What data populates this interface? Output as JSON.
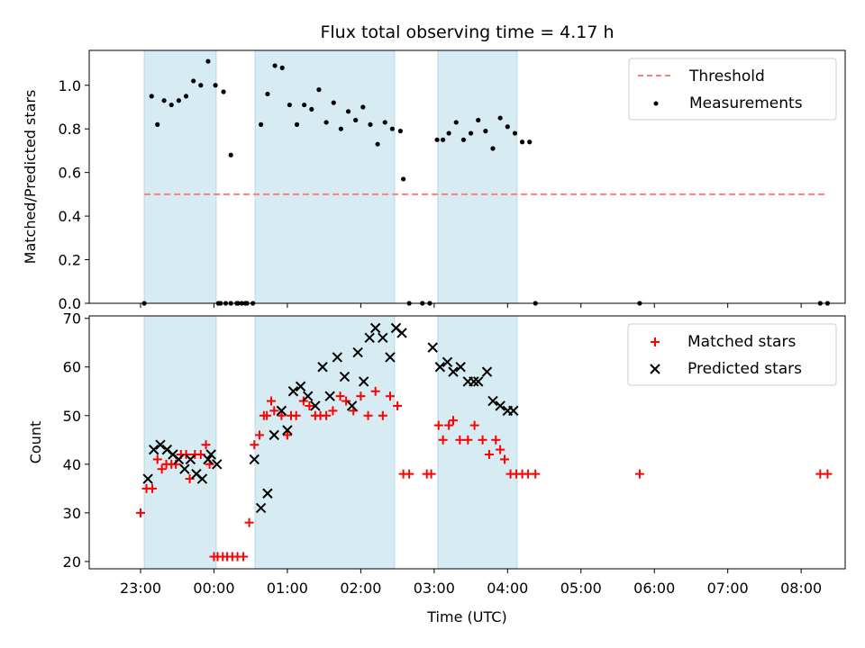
{
  "chart_data": [
    {
      "type": "scatter",
      "title": "Flux total observing time = 4.17 h",
      "xlabel": "",
      "ylabel": "Matched/Predicted stars",
      "ylim": [
        0,
        1.16
      ],
      "yticks": [
        0.0,
        0.2,
        0.4,
        0.6,
        0.8,
        1.0
      ],
      "ytick_labels": [
        "0.0",
        "0.2",
        "0.4",
        "0.6",
        "0.8",
        "1.0"
      ],
      "x_unit": "hours relative to 00:00 UTC",
      "xlim": [
        -1.7,
        8.6
      ],
      "shaded_intervals": [
        [
          -0.95,
          0.03
        ],
        [
          0.56,
          2.46
        ],
        [
          3.05,
          4.13
        ]
      ],
      "shade_color": "#add8e6",
      "legend_position": "upper right",
      "threshold": {
        "name": "Threshold",
        "value": 0.5,
        "x_range": [
          -0.95,
          8.33
        ],
        "color": "#ff7f7f",
        "style": "dashed"
      },
      "series": [
        {
          "name": "Measurements",
          "color": "#000000",
          "marker": "dot",
          "x": [
            -0.95,
            -0.85,
            -0.77,
            -0.68,
            -0.58,
            -0.48,
            -0.38,
            -0.28,
            -0.18,
            -0.08,
            0.02,
            0.13,
            0.23,
            0.33,
            0.43,
            0.53,
            0.06,
            0.09,
            0.16,
            0.23,
            0.31,
            0.38,
            0.45,
            0.64,
            0.73,
            0.83,
            0.93,
            1.03,
            1.13,
            1.23,
            1.33,
            1.43,
            1.53,
            1.63,
            1.73,
            1.83,
            1.93,
            2.03,
            2.13,
            2.23,
            2.33,
            2.43,
            2.54,
            2.58,
            2.66,
            2.84,
            2.94,
            3.04,
            3.12,
            3.2,
            3.3,
            3.4,
            3.5,
            3.6,
            3.7,
            3.8,
            3.9,
            4.0,
            4.1,
            4.2,
            4.3,
            4.38,
            5.8,
            8.26,
            8.36
          ],
          "y": [
            0.0,
            0.95,
            0.82,
            0.93,
            0.91,
            0.93,
            0.95,
            1.02,
            1.0,
            1.11,
            1.0,
            0.97,
            0.68,
            0.0,
            0.0,
            0.0,
            0.0,
            0.0,
            0.0,
            0.0,
            0.0,
            0.0,
            0.0,
            0.82,
            0.96,
            1.09,
            1.08,
            0.91,
            0.82,
            0.91,
            0.89,
            0.98,
            0.83,
            0.92,
            0.8,
            0.88,
            0.84,
            0.9,
            0.82,
            0.73,
            0.83,
            0.8,
            0.79,
            0.57,
            0.0,
            0.0,
            0.0,
            0.75,
            0.75,
            0.78,
            0.83,
            0.75,
            0.78,
            0.84,
            0.79,
            0.71,
            0.85,
            0.81,
            0.78,
            0.74,
            0.74,
            0.0,
            0.0,
            0.0,
            0.0
          ]
        }
      ]
    },
    {
      "type": "scatter",
      "title": "",
      "xlabel": "Time (UTC)",
      "ylabel": "Count",
      "ylim": [
        18.5,
        70.5
      ],
      "yticks": [
        20,
        30,
        40,
        50,
        60,
        70
      ],
      "ytick_labels": [
        "20",
        "30",
        "40",
        "50",
        "60",
        "70"
      ],
      "x_unit": "hours relative to 00:00 UTC",
      "xlim": [
        -1.7,
        8.6
      ],
      "xticks": [
        -1,
        0,
        1,
        2,
        3,
        4,
        5,
        6,
        7,
        8
      ],
      "xtick_labels": [
        "23:00",
        "00:00",
        "01:00",
        "02:00",
        "03:00",
        "04:00",
        "05:00",
        "06:00",
        "07:00",
        "08:00"
      ],
      "shaded_intervals": [
        [
          -0.95,
          0.03
        ],
        [
          0.56,
          2.46
        ],
        [
          3.05,
          4.13
        ]
      ],
      "shade_color": "#add8e6",
      "legend_position": "upper right",
      "series": [
        {
          "name": "Matched stars",
          "color": "#ff0000",
          "marker": "plus",
          "x": [
            -1.0,
            -0.92,
            -0.84,
            -0.77,
            -0.71,
            -0.65,
            -0.58,
            -0.52,
            -0.45,
            -0.38,
            -0.33,
            -0.26,
            -0.18,
            -0.11,
            -0.06,
            0.0,
            0.05,
            0.12,
            0.18,
            0.25,
            0.32,
            0.4,
            0.48,
            0.55,
            0.62,
            0.68,
            0.72,
            0.78,
            0.82,
            0.92,
            1.0,
            1.05,
            1.12,
            1.22,
            1.3,
            1.38,
            1.45,
            1.53,
            1.62,
            1.72,
            1.8,
            1.9,
            2.0,
            2.1,
            2.2,
            2.3,
            2.4,
            2.5,
            2.58,
            2.66,
            2.9,
            2.96,
            3.06,
            3.12,
            3.2,
            3.26,
            3.35,
            3.46,
            3.55,
            3.66,
            3.75,
            3.84,
            3.9,
            3.96,
            4.04,
            4.12,
            4.2,
            4.28,
            4.38,
            5.8,
            8.26,
            8.36
          ],
          "y": [
            30,
            35,
            35,
            41,
            39,
            40,
            40,
            40,
            42,
            42,
            37,
            42,
            42,
            44,
            40,
            21,
            21,
            21,
            21,
            21,
            21,
            21,
            28,
            44,
            46,
            50,
            50,
            53,
            51,
            50,
            46,
            50,
            50,
            53,
            52,
            50,
            50,
            50,
            51,
            54,
            53,
            51,
            54,
            50,
            55,
            50,
            54,
            52,
            38,
            38,
            38,
            38,
            48,
            45,
            48,
            49,
            45,
            45,
            48,
            45,
            42,
            45,
            43,
            41,
            38,
            38,
            38,
            38,
            38,
            38,
            38,
            38
          ]
        },
        {
          "name": "Predicted stars",
          "color": "#000000",
          "marker": "x",
          "x": [
            -0.9,
            -0.82,
            -0.73,
            -0.64,
            -0.56,
            -0.48,
            -0.4,
            -0.32,
            -0.24,
            -0.16,
            -0.08,
            -0.04,
            0.04,
            0.55,
            0.64,
            0.73,
            0.82,
            0.92,
            1.0,
            1.08,
            1.18,
            1.28,
            1.38,
            1.48,
            1.58,
            1.68,
            1.78,
            1.88,
            1.96,
            2.04,
            2.12,
            2.2,
            2.3,
            2.4,
            2.48,
            2.56,
            2.98,
            3.08,
            3.18,
            3.26,
            3.36,
            3.46,
            3.54,
            3.6,
            3.72,
            3.8,
            3.9,
            4.0,
            4.08
          ],
          "y": [
            37,
            43,
            44,
            43,
            42,
            41,
            39,
            41,
            38,
            37,
            41,
            42,
            40,
            41,
            31,
            34,
            46,
            51,
            47,
            55,
            56,
            54,
            52,
            60,
            54,
            62,
            58,
            52,
            63,
            57,
            66,
            68,
            66,
            62,
            68,
            67,
            64,
            60,
            61,
            59,
            60,
            57,
            57,
            57,
            59,
            53,
            52,
            51,
            51
          ]
        }
      ]
    }
  ]
}
